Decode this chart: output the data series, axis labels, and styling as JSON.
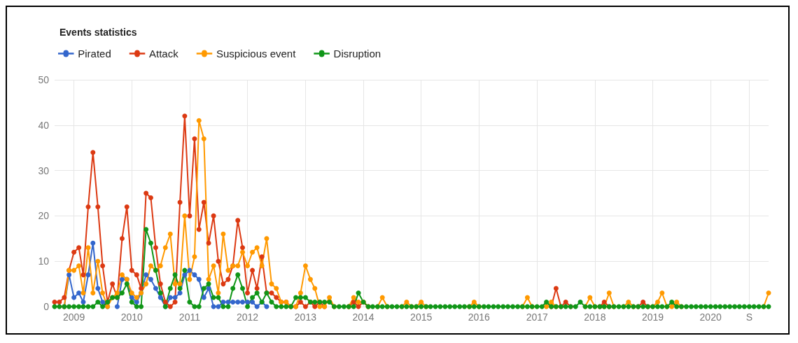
{
  "chart_data": {
    "type": "line",
    "title": "Events statistics",
    "x": [
      "2008-09",
      "2008-10",
      "2008-11",
      "2008-12",
      "2009-01",
      "2009-02",
      "2009-03",
      "2009-04",
      "2009-05",
      "2009-06",
      "2009-07",
      "2009-08",
      "2009-09",
      "2009-10",
      "2009-11",
      "2009-12",
      "2010-01",
      "2010-02",
      "2010-03",
      "2010-04",
      "2010-05",
      "2010-06",
      "2010-07",
      "2010-08",
      "2010-09",
      "2010-10",
      "2010-11",
      "2010-12",
      "2011-01",
      "2011-02",
      "2011-03",
      "2011-04",
      "2011-05",
      "2011-06",
      "2011-07",
      "2011-08",
      "2011-09",
      "2011-10",
      "2011-11",
      "2011-12",
      "2012-01",
      "2012-02",
      "2012-03",
      "2012-04",
      "2012-05",
      "2012-06",
      "2012-07",
      "2012-08",
      "2012-09",
      "2012-10",
      "2012-11",
      "2012-12",
      "2013-01",
      "2013-02",
      "2013-03",
      "2013-04",
      "2013-05",
      "2013-06",
      "2013-07",
      "2013-08",
      "2013-09",
      "2013-10",
      "2013-11",
      "2013-12",
      "2014-01",
      "2014-02",
      "2014-03",
      "2014-04",
      "2014-05",
      "2014-06",
      "2014-07",
      "2014-08",
      "2014-09",
      "2014-10",
      "2014-11",
      "2014-12",
      "2015-01",
      "2015-02",
      "2015-03",
      "2015-04",
      "2015-05",
      "2015-06",
      "2015-07",
      "2015-08",
      "2015-09",
      "2015-10",
      "2015-11",
      "2015-12",
      "2016-01",
      "2016-02",
      "2016-03",
      "2016-04",
      "2016-05",
      "2016-06",
      "2016-07",
      "2016-08",
      "2016-09",
      "2016-10",
      "2016-11",
      "2016-12",
      "2017-01",
      "2017-02",
      "2017-03",
      "2017-04",
      "2017-05",
      "2017-06",
      "2017-07",
      "2017-08",
      "2017-09",
      "2017-10",
      "2017-11",
      "2017-12",
      "2018-01",
      "2018-02",
      "2018-03",
      "2018-04",
      "2018-05",
      "2018-06",
      "2018-07",
      "2018-08",
      "2018-09",
      "2018-10",
      "2018-11",
      "2018-12",
      "2019-01",
      "2019-02",
      "2019-03",
      "2019-04",
      "2019-05",
      "2019-06",
      "2019-07",
      "2019-08",
      "2019-09",
      "2019-10",
      "2019-11",
      "2019-12",
      "2020-01",
      "2020-02",
      "2020-03",
      "2020-04",
      "2020-05",
      "2020-06",
      "2020-07",
      "2020-08",
      "2020-09",
      "2020-10",
      "2020-11",
      "2020-12",
      "2021-01"
    ],
    "series": [
      {
        "name": "Pirated",
        "color": "#3366cc",
        "values": [
          null,
          null,
          0,
          7,
          2,
          3,
          1,
          7,
          14,
          4,
          1,
          0,
          null,
          0,
          6,
          6,
          2,
          1,
          3,
          7,
          6,
          4,
          2,
          0,
          2,
          2,
          3,
          7,
          8,
          7,
          6,
          2,
          4,
          0,
          0,
          1,
          1,
          1,
          1,
          1,
          1,
          1,
          0,
          1,
          0,
          null,
          null,
          null,
          null,
          null,
          null,
          null,
          null,
          null,
          null,
          null,
          null,
          null,
          null,
          null,
          null,
          null,
          null,
          null,
          null,
          null,
          null,
          null,
          null,
          null,
          null,
          null,
          null,
          null,
          null,
          null,
          null,
          null,
          null,
          null,
          null,
          null,
          null,
          null,
          null,
          null,
          null,
          null,
          null,
          null,
          null,
          null,
          null,
          null,
          null,
          null,
          null,
          null,
          null,
          null,
          null,
          null,
          null,
          null,
          null,
          null,
          null,
          null,
          null,
          null,
          null,
          null,
          null,
          null,
          null,
          null,
          null,
          null,
          null,
          null,
          null,
          null,
          null,
          null,
          null,
          null,
          null,
          null,
          null,
          null,
          null,
          null,
          null,
          null,
          null,
          null,
          null,
          null,
          null,
          null,
          null,
          null,
          null,
          null,
          null,
          null,
          null,
          null,
          null
        ]
      },
      {
        "name": "Attack",
        "color": "#dc3912",
        "values": [
          1,
          1,
          2,
          8,
          12,
          13,
          7,
          22,
          34,
          22,
          9,
          1,
          5,
          2,
          15,
          22,
          8,
          7,
          4,
          25,
          24,
          13,
          5,
          1,
          0,
          1,
          23,
          42,
          20,
          37,
          17,
          23,
          14,
          20,
          10,
          5,
          6,
          9,
          19,
          13,
          3,
          8,
          4,
          11,
          3,
          3,
          2,
          1,
          1,
          0,
          0,
          1,
          0,
          1,
          0,
          1,
          0,
          null,
          null,
          null,
          null,
          0,
          1,
          0,
          1,
          0,
          null,
          null,
          null,
          null,
          null,
          null,
          null,
          null,
          null,
          null,
          null,
          null,
          null,
          null,
          null,
          null,
          null,
          null,
          null,
          null,
          null,
          null,
          null,
          null,
          null,
          null,
          null,
          null,
          null,
          null,
          null,
          null,
          null,
          null,
          null,
          null,
          null,
          0,
          4,
          0,
          1,
          0,
          null,
          null,
          null,
          null,
          null,
          0,
          1,
          0,
          null,
          null,
          null,
          null,
          null,
          0,
          1,
          0,
          null,
          null,
          null,
          null,
          null,
          null,
          null,
          null,
          null,
          null,
          null,
          null,
          null,
          null,
          null,
          null,
          null,
          null,
          null,
          null,
          null,
          null,
          null,
          null,
          null
        ]
      },
      {
        "name": "Suspicious event",
        "color": "#ff9900",
        "values": [
          null,
          null,
          0,
          8,
          8,
          9,
          3,
          13,
          3,
          10,
          3,
          0,
          2,
          3,
          7,
          6,
          3,
          2,
          3,
          5,
          9,
          8,
          9,
          13,
          16,
          5,
          5,
          20,
          6,
          11,
          41,
          37,
          6,
          9,
          3,
          16,
          8,
          9,
          9,
          12,
          9,
          12,
          13,
          9,
          15,
          5,
          4,
          1,
          1,
          0,
          0,
          3,
          9,
          6,
          4,
          0,
          0,
          2,
          0,
          null,
          null,
          0,
          2,
          1,
          1,
          0,
          null,
          0,
          2,
          0,
          null,
          null,
          0,
          1,
          0,
          0,
          1,
          0,
          null,
          null,
          null,
          null,
          null,
          null,
          null,
          null,
          0,
          1,
          0,
          null,
          null,
          null,
          null,
          null,
          null,
          null,
          null,
          0,
          2,
          0,
          null,
          null,
          0,
          1,
          0,
          null,
          null,
          null,
          null,
          null,
          0,
          2,
          0,
          null,
          0,
          3,
          0,
          null,
          0,
          1,
          0,
          null,
          null,
          null,
          0,
          1,
          3,
          0,
          0,
          1,
          0,
          null,
          null,
          null,
          null,
          null,
          null,
          null,
          null,
          null,
          null,
          null,
          null,
          null,
          null,
          null,
          null,
          0,
          3
        ]
      },
      {
        "name": "Disruption",
        "color": "#109618",
        "values": [
          0,
          0,
          0,
          0,
          0,
          0,
          0,
          0,
          0,
          1,
          0,
          1,
          2,
          2,
          3,
          5,
          1,
          0,
          0,
          17,
          14,
          8,
          3,
          0,
          4,
          7,
          4,
          8,
          1,
          0,
          0,
          4,
          5,
          2,
          2,
          0,
          0,
          4,
          7,
          4,
          0,
          2,
          3,
          1,
          3,
          1,
          0,
          0,
          0,
          0,
          2,
          2,
          2,
          1,
          1,
          1,
          1,
          1,
          0,
          0,
          0,
          0,
          0,
          3,
          1,
          0,
          0,
          0,
          0,
          0,
          0,
          0,
          0,
          0,
          0,
          0,
          0,
          0,
          0,
          0,
          0,
          0,
          0,
          0,
          0,
          0,
          0,
          0,
          0,
          0,
          0,
          0,
          0,
          0,
          0,
          0,
          0,
          0,
          0,
          0,
          0,
          0,
          1,
          0,
          0,
          0,
          0,
          0,
          0,
          1,
          0,
          0,
          0,
          0,
          0,
          0,
          0,
          0,
          0,
          0,
          0,
          0,
          0,
          0,
          0,
          0,
          0,
          0,
          1,
          0,
          0,
          0,
          0,
          0,
          0,
          0,
          0,
          0,
          0,
          0,
          0,
          0,
          0,
          0,
          0,
          0,
          0,
          0,
          0
        ]
      }
    ],
    "xlim": [
      "2008-09",
      "2021-01"
    ],
    "xticks": [
      "2009",
      "2010",
      "2011",
      "2012",
      "2013",
      "2014",
      "2015",
      "2016",
      "2017",
      "2018",
      "2019",
      "2020",
      {
        "value": "2020-09",
        "label": "S"
      }
    ],
    "ylim": [
      0,
      50
    ],
    "yticks": [
      0,
      10,
      20,
      30,
      40,
      50
    ],
    "grid": true,
    "legend": "top left",
    "marker": "circle",
    "line_style": "solid"
  }
}
